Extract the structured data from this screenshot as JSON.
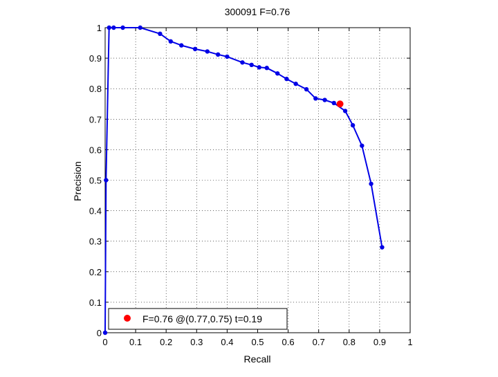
{
  "chart_data": {
    "type": "line",
    "title": "300091 F=0.76",
    "xlabel": "Recall",
    "ylabel": "Precision",
    "xlim": [
      0,
      1
    ],
    "ylim": [
      0,
      1
    ],
    "xticks": [
      0,
      0.1,
      0.2,
      0.3,
      0.4,
      0.5,
      0.6,
      0.7,
      0.8,
      0.9,
      1
    ],
    "yticks": [
      0,
      0.1,
      0.2,
      0.3,
      0.4,
      0.5,
      0.6,
      0.7,
      0.8,
      0.9,
      1
    ],
    "xtick_labels": [
      "0",
      "0.1",
      "0.2",
      "0.3",
      "0.4",
      "0.5",
      "0.6",
      "0.7",
      "0.8",
      "0.9",
      "1"
    ],
    "ytick_labels": [
      "0",
      "0.1",
      "0.2",
      "0.3",
      "0.4",
      "0.5",
      "0.6",
      "0.7",
      "0.8",
      "0.9",
      "1"
    ],
    "grid": true,
    "legend_position": "bottom-left",
    "colors": {
      "curve": "#0000e6",
      "best_point": "#ff0000"
    },
    "series": [
      {
        "points": [
          [
            0.0,
            0.0
          ],
          [
            0.003,
            0.5
          ],
          [
            0.013,
            1.0
          ],
          [
            0.028,
            1.0
          ],
          [
            0.058,
            1.0
          ],
          [
            0.115,
            1.0
          ],
          [
            0.18,
            0.98
          ],
          [
            0.215,
            0.955
          ],
          [
            0.25,
            0.942
          ],
          [
            0.295,
            0.93
          ],
          [
            0.335,
            0.922
          ],
          [
            0.37,
            0.912
          ],
          [
            0.4,
            0.905
          ],
          [
            0.45,
            0.886
          ],
          [
            0.48,
            0.878
          ],
          [
            0.505,
            0.87
          ],
          [
            0.53,
            0.868
          ],
          [
            0.565,
            0.85
          ],
          [
            0.595,
            0.832
          ],
          [
            0.625,
            0.816
          ],
          [
            0.66,
            0.798
          ],
          [
            0.69,
            0.768
          ],
          [
            0.72,
            0.763
          ],
          [
            0.75,
            0.753
          ],
          [
            0.787,
            0.727
          ],
          [
            0.812,
            0.68
          ],
          [
            0.842,
            0.613
          ],
          [
            0.872,
            0.488
          ],
          [
            0.908,
            0.28
          ]
        ]
      }
    ],
    "best_point": {
      "x": 0.77,
      "y": 0.75
    },
    "legend_label": "F=0.76 @(0.77,0.75) t=0.19"
  }
}
